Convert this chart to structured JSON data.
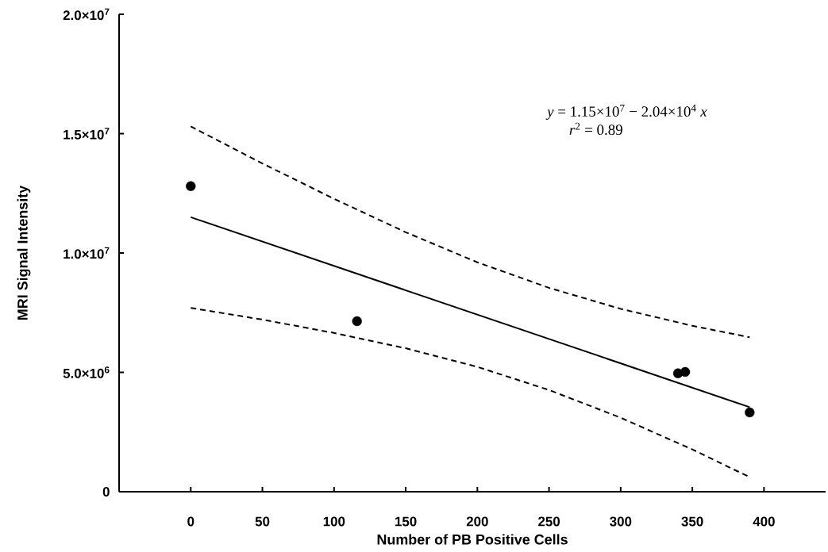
{
  "chart_data": {
    "type": "scatter",
    "xlabel": "Number of PB Positive Cells",
    "ylabel": "MRI Signal Intensity",
    "xlim": [
      -50,
      443
    ],
    "ylim": [
      0,
      20000000
    ],
    "xticks": [
      0,
      50,
      100,
      150,
      200,
      250,
      300,
      350,
      400
    ],
    "yticks": [
      0,
      {
        "value": 5000000,
        "label": "5.0×10$^{6}$"
      },
      {
        "value": 10000000,
        "label": "1.0×10$^{7}$"
      },
      {
        "value": 15000000,
        "label": "1.5×10$^{7}$"
      },
      {
        "value": 20000000,
        "label": "2.0×10$^{7}$"
      }
    ],
    "annotations": [
      "*y* = 1.15×10$^{7}$ − 2.04×10$^{4}$ *x*",
      "*r*$^{2}$ = 0.89"
    ],
    "series": [
      {
        "color": "#000000",
        "marker": "circle",
        "x": [
          0,
          116,
          340,
          345,
          390
        ],
        "values": [
          12800000,
          7140000,
          4960000,
          5020000,
          3320000
        ]
      },
      {
        "type": "line",
        "color": "#000000",
        "marker": "none",
        "line_style": "solid",
        "x": [
          0,
          390
        ],
        "values": [
          11500000,
          3540000
        ]
      },
      {
        "type": "line",
        "color": "#000000",
        "marker": "none",
        "line_style": "dashed",
        "x": [
          0,
          50,
          100,
          150,
          200,
          250,
          300,
          350,
          390
        ],
        "values": [
          15300000,
          13750000,
          12270000,
          10870000,
          9610000,
          8540000,
          7660000,
          6950000,
          6470000
        ]
      },
      {
        "type": "line",
        "color": "#000000",
        "marker": "none",
        "line_style": "dashed",
        "x": [
          0,
          50,
          100,
          150,
          200,
          250,
          300,
          350,
          390
        ],
        "values": [
          7700000,
          7210000,
          6650000,
          6010000,
          5230000,
          4260000,
          3100000,
          1770000,
          610000
        ]
      }
    ]
  }
}
